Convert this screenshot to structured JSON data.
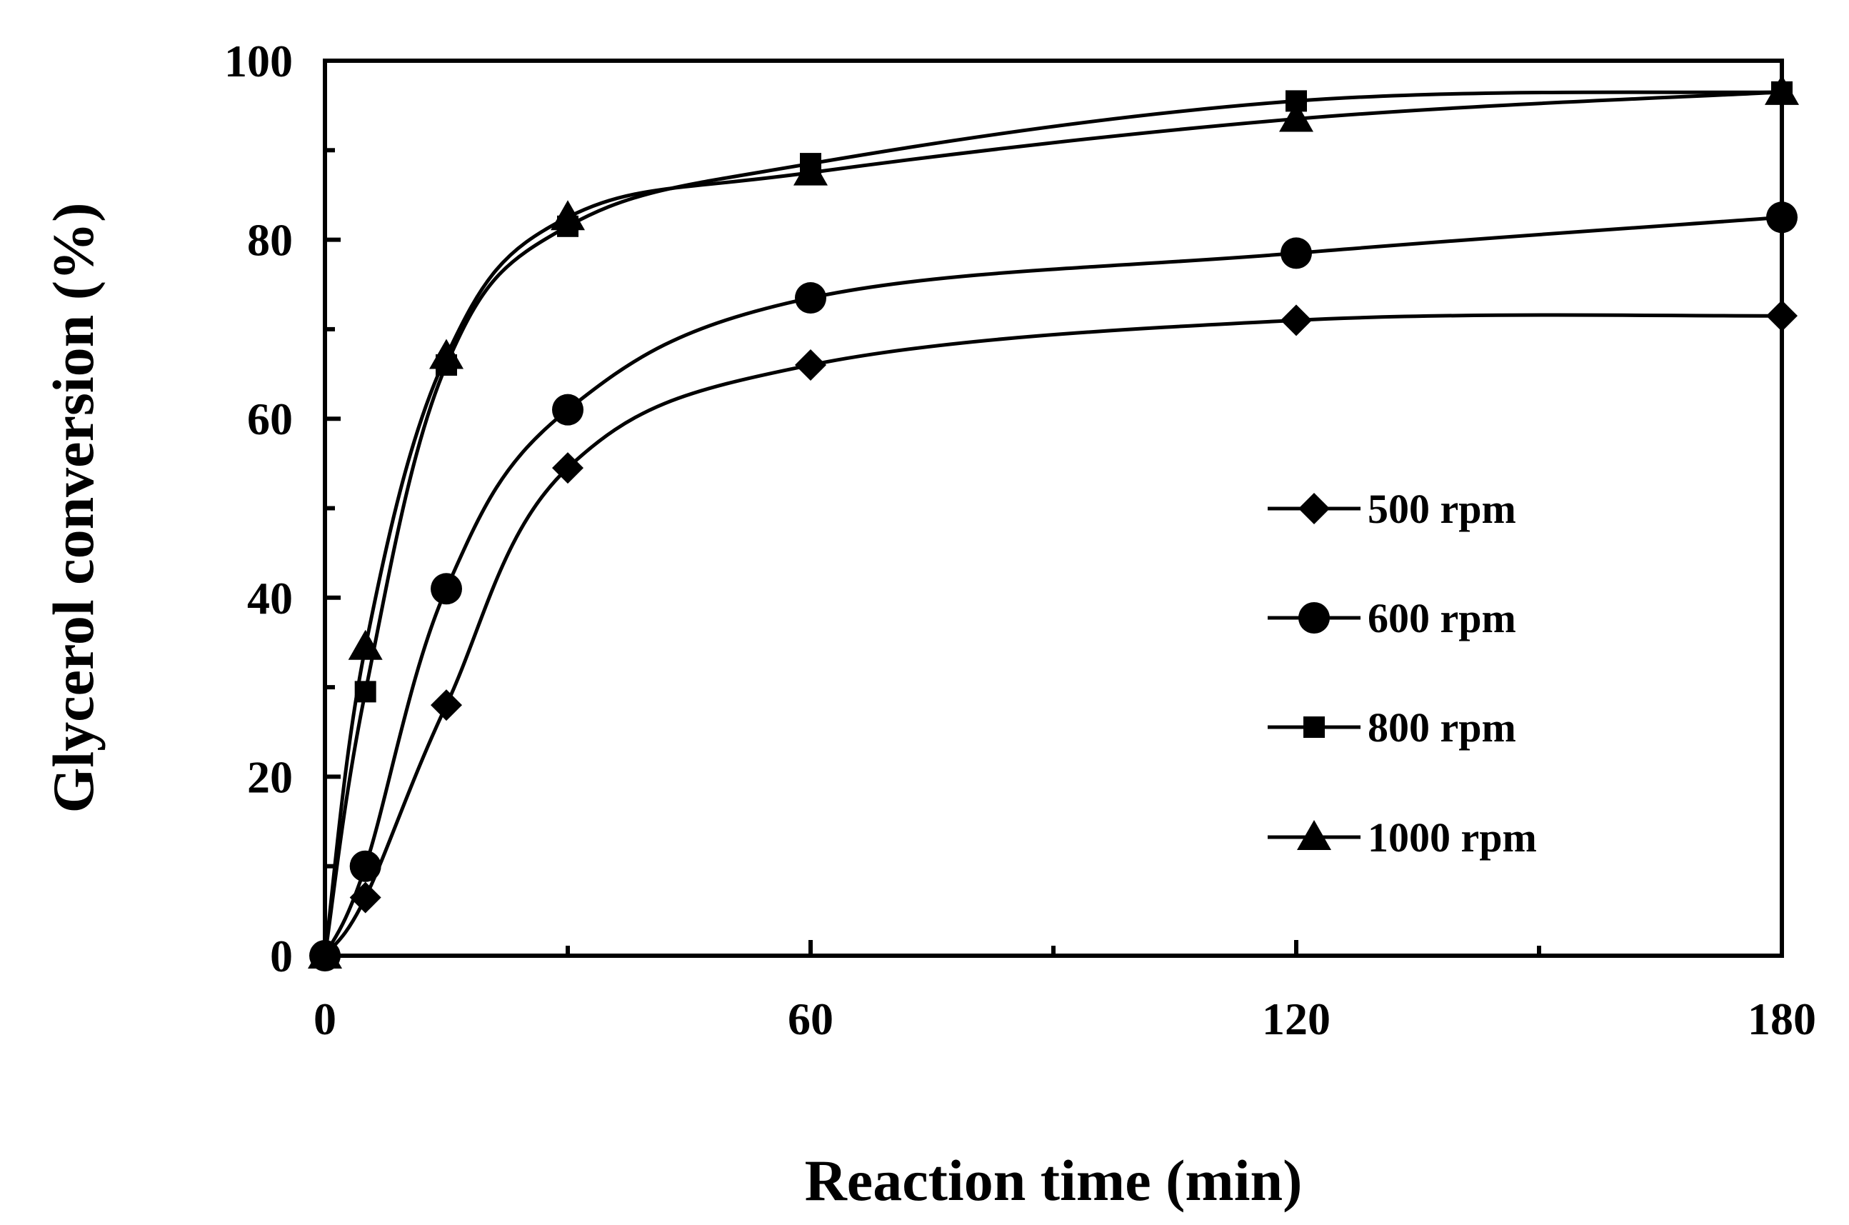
{
  "chart_data": {
    "type": "line",
    "title": "",
    "xlabel": "Reaction time (min)",
    "ylabel": "Glycerol conversion (%)",
    "xlim": [
      0,
      180
    ],
    "ylim": [
      0,
      100
    ],
    "xticks": [
      0,
      60,
      120,
      180
    ],
    "yticks": [
      0,
      20,
      40,
      60,
      80,
      100
    ],
    "x_minor_step": 30,
    "y_minor_step": 10,
    "grid": false,
    "legend_position": "right",
    "x": [
      0,
      5,
      15,
      30,
      60,
      120,
      180
    ],
    "series": [
      {
        "name": "500 rpm",
        "marker": "diamond",
        "values": [
          0,
          6.5,
          28,
          54.5,
          66,
          71,
          71.5
        ]
      },
      {
        "name": "600 rpm",
        "marker": "circle",
        "values": [
          0,
          10,
          41,
          61,
          73.5,
          78.5,
          82.5
        ]
      },
      {
        "name": "800 rpm",
        "marker": "square",
        "values": [
          0,
          29.5,
          66,
          81.5,
          88.5,
          95.5,
          96.5
        ]
      },
      {
        "name": "1000 rpm",
        "marker": "triangle",
        "values": [
          0,
          34.5,
          67,
          82.5,
          87.5,
          93.5,
          96.5
        ]
      }
    ]
  }
}
